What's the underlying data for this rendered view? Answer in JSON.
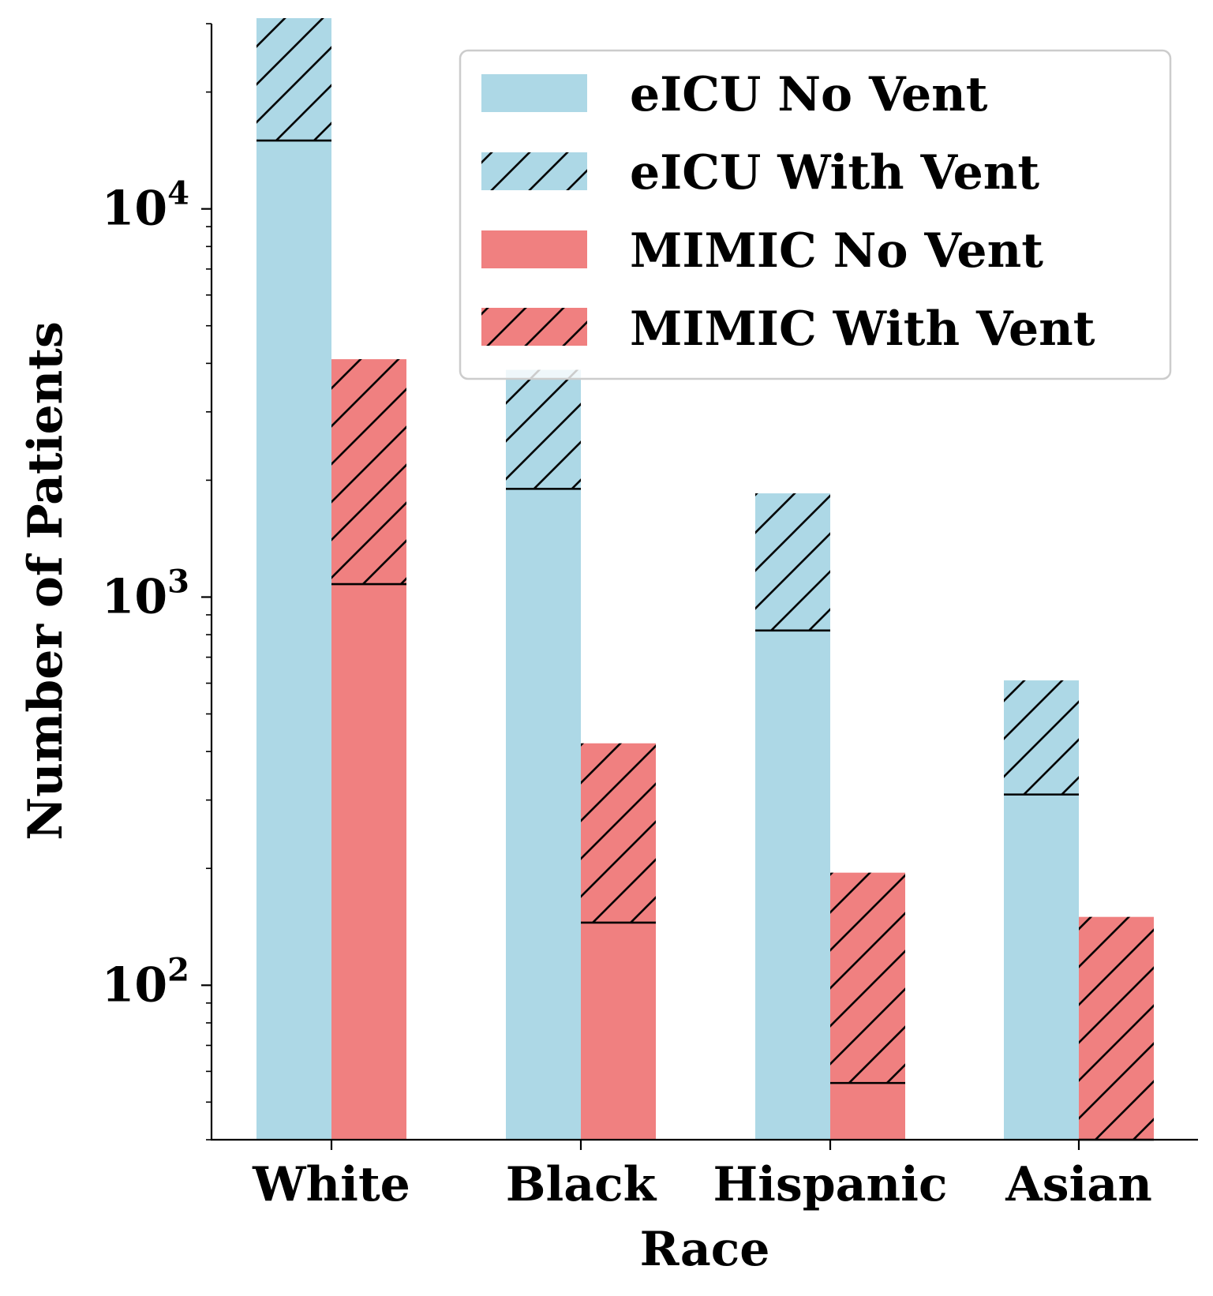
{
  "chart_data": {
    "type": "bar",
    "stacked": true,
    "log_scale_y": true,
    "title": "",
    "xlabel": "Race",
    "ylabel": "Number of Patients",
    "ylim": [
      40,
      30000
    ],
    "categories": [
      "White",
      "Black",
      "Hispanic",
      "Asian"
    ],
    "y_ticks": [
      {
        "value": 100,
        "base": "10",
        "exp": "2"
      },
      {
        "value": 1000,
        "base": "10",
        "exp": "3"
      },
      {
        "value": 10000,
        "base": "10",
        "exp": "4"
      }
    ],
    "groups": [
      {
        "name": "eICU",
        "color": "#add8e6",
        "no_vent_label": "eICU No Vent",
        "with_vent_label": "eICU With Vent",
        "no_vent_totals": [
          15000,
          1900,
          820,
          310
        ],
        "total_with_vent": [
          31000,
          3850,
          1850,
          610
        ]
      },
      {
        "name": "MIMIC",
        "color": "#f08080",
        "no_vent_label": "MIMIC No Vent",
        "with_vent_label": "MIMIC With Vent",
        "no_vent_totals": [
          1080,
          145,
          56,
          40
        ],
        "total_with_vent": [
          4100,
          420,
          195,
          150
        ]
      }
    ],
    "legend": {
      "position": "upper right",
      "entries": [
        {
          "label": "eICU No Vent",
          "color": "#add8e6",
          "hatch": false
        },
        {
          "label": "eICU With Vent",
          "color": "#add8e6",
          "hatch": true
        },
        {
          "label": "MIMIC No Vent",
          "color": "#f08080",
          "hatch": false
        },
        {
          "label": "MIMIC With Vent",
          "color": "#f08080",
          "hatch": true
        }
      ]
    }
  }
}
